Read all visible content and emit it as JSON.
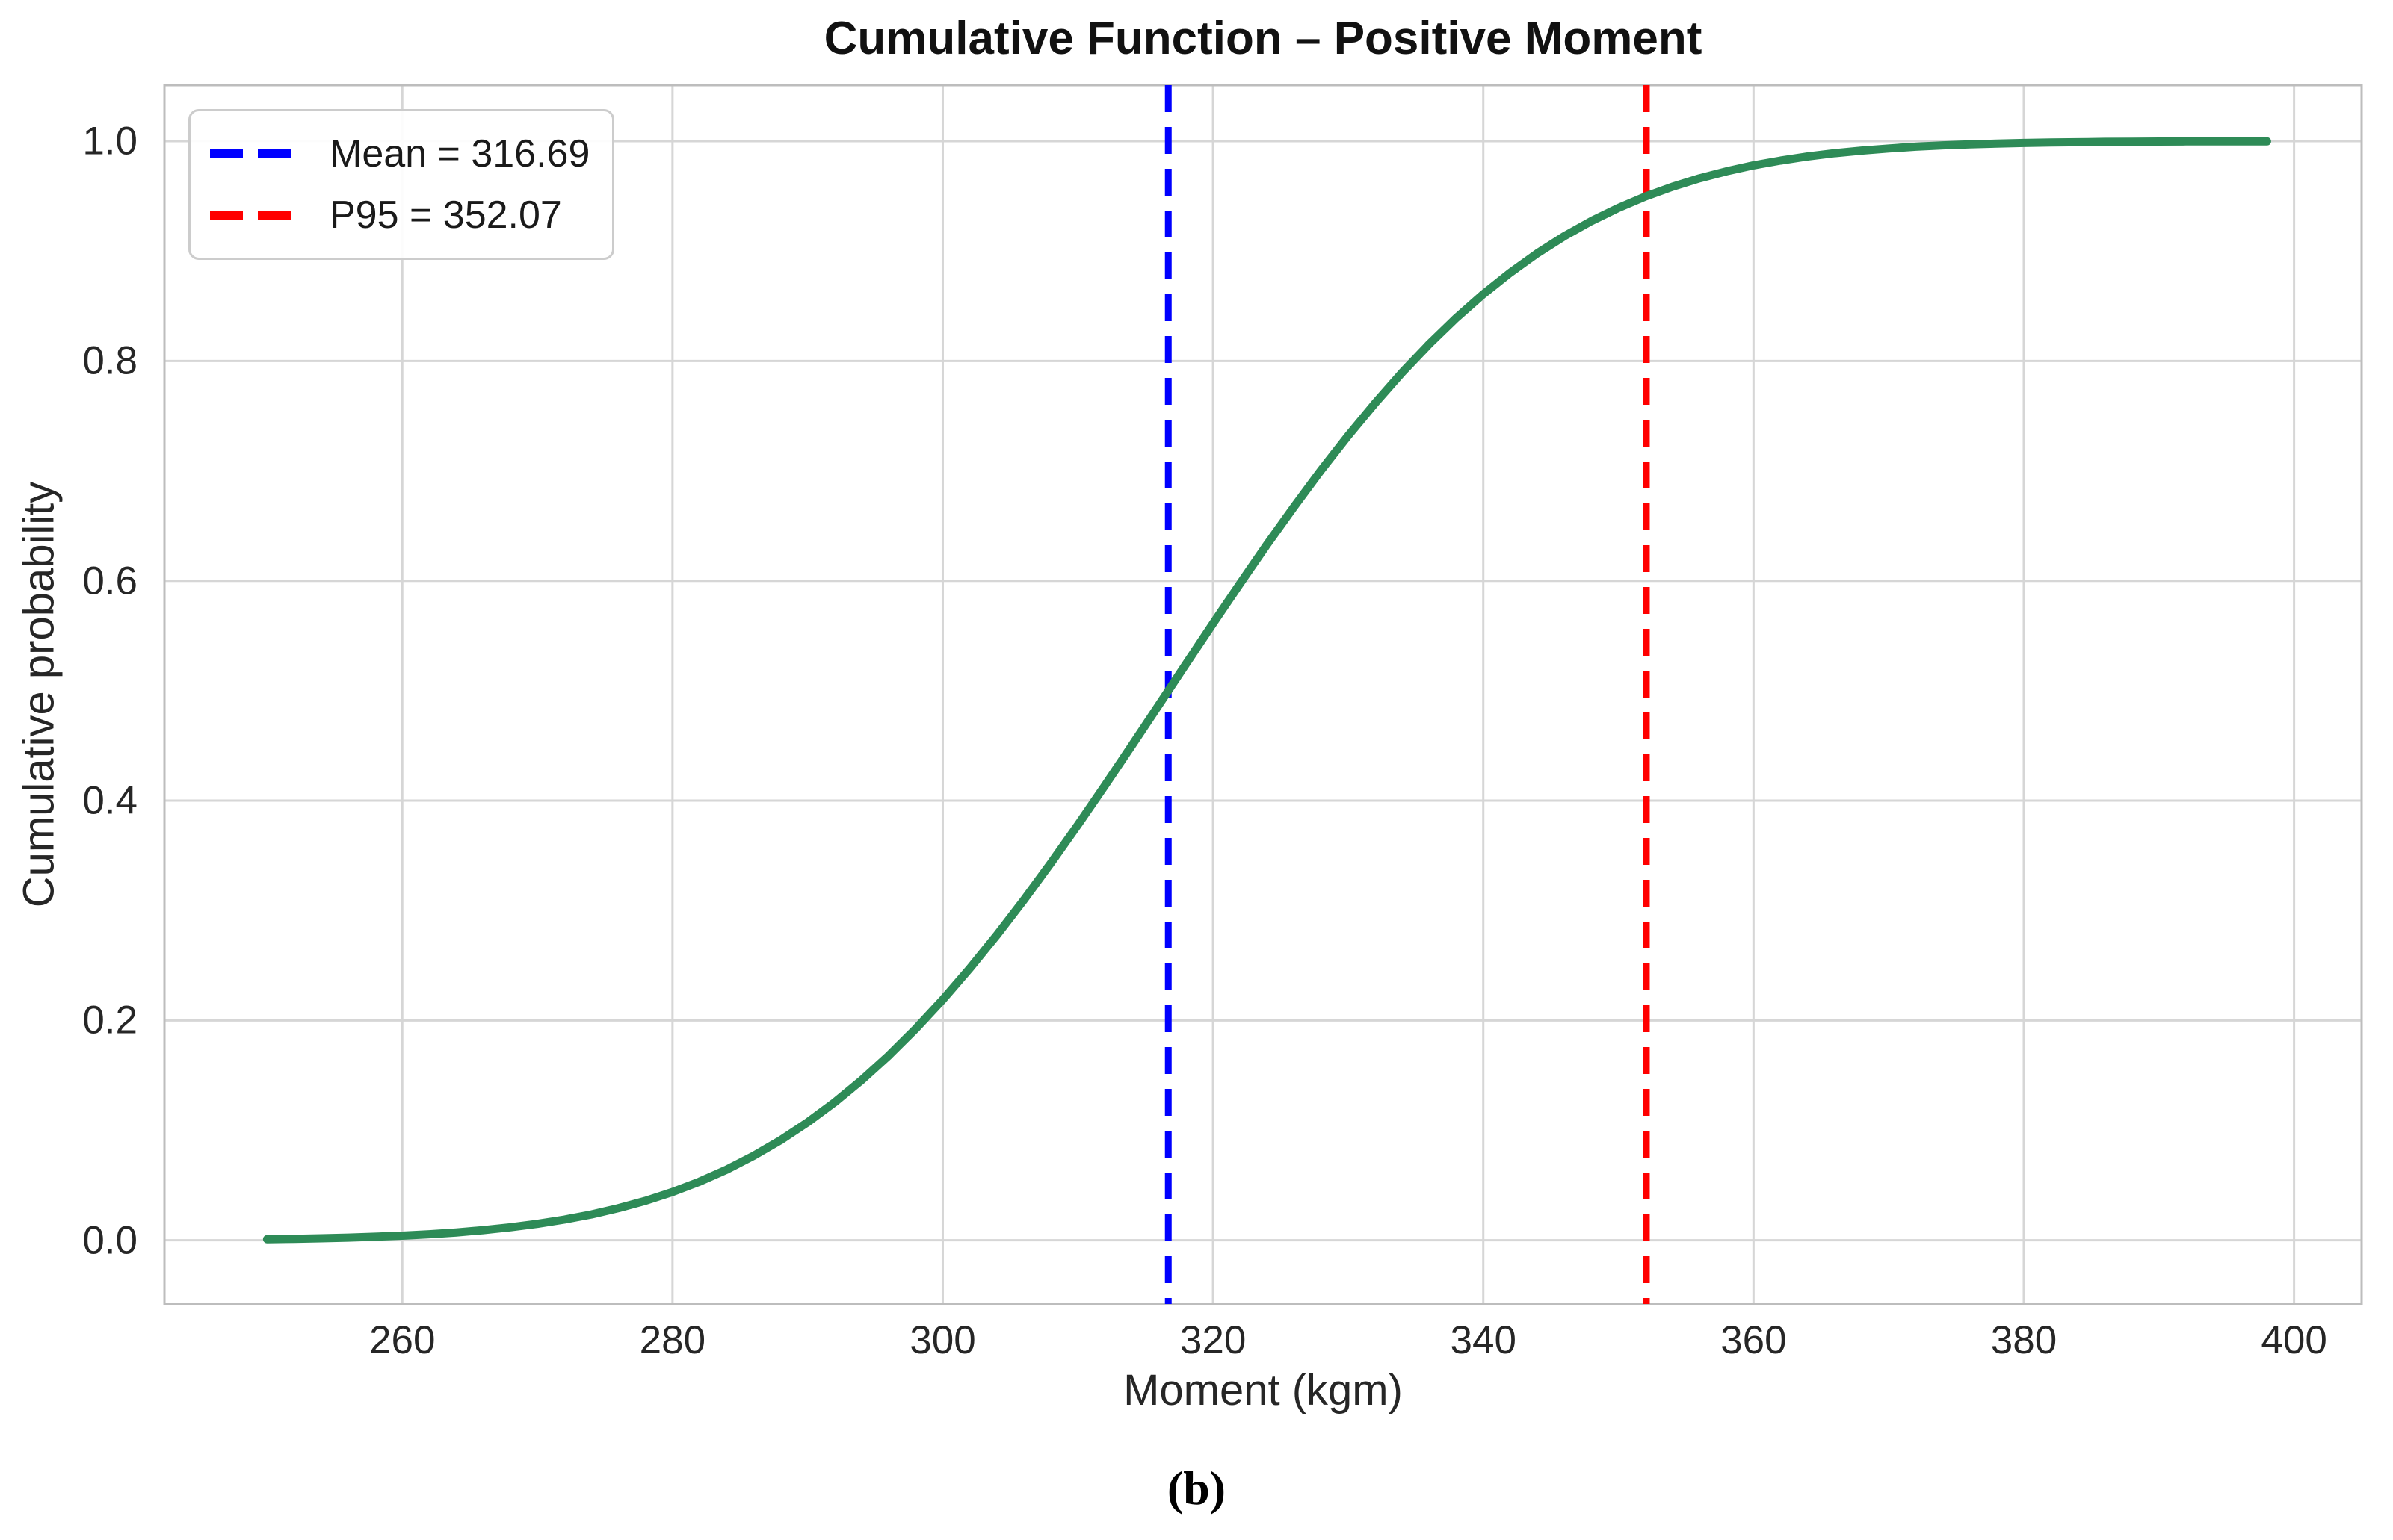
{
  "figure": {
    "title": "Cumulative Function – Positive Moment",
    "xlabel": "Moment (kgm)",
    "ylabel": "Cumulative probability",
    "caption": "(b)"
  },
  "legend": {
    "position": "upper-left",
    "items": [
      {
        "name": "mean-line",
        "label": "Mean = 316.69",
        "color": "#0000ff",
        "style": "dashed"
      },
      {
        "name": "p95-line",
        "label": "P95 = 352.07",
        "color": "#ff0000",
        "style": "dashed"
      }
    ]
  },
  "colors": {
    "curve": "#2e8b57",
    "mean_line": "#0000ff",
    "p95_line": "#ff0000",
    "grid": "#d6d6d6",
    "spine": "#bdbdbd",
    "text": "#262626"
  },
  "chart_data": {
    "type": "line",
    "title": "Cumulative Function – Positive Moment",
    "xlabel": "Moment (kgm)",
    "ylabel": "Cumulative probability",
    "xlim": [
      242.4,
      405.0
    ],
    "ylim": [
      -0.058,
      1.051
    ],
    "grid": true,
    "legend_position": "upper-left",
    "xticks": [
      {
        "v": 260,
        "label": "260"
      },
      {
        "v": 280,
        "label": "280"
      },
      {
        "v": 300,
        "label": "300"
      },
      {
        "v": 320,
        "label": "320"
      },
      {
        "v": 340,
        "label": "340"
      },
      {
        "v": 360,
        "label": "360"
      },
      {
        "v": 380,
        "label": "380"
      },
      {
        "v": 400,
        "label": "400"
      }
    ],
    "yticks": [
      {
        "v": 0.0,
        "label": "0.0"
      },
      {
        "v": 0.2,
        "label": "0.2"
      },
      {
        "v": 0.4,
        "label": "0.4"
      },
      {
        "v": 0.6,
        "label": "0.6"
      },
      {
        "v": 0.8,
        "label": "0.8"
      },
      {
        "v": 1.0,
        "label": "1.0"
      }
    ],
    "vlines": [
      {
        "name": "mean",
        "x": 316.69,
        "color": "#0000ff",
        "label": "Mean = 316.69"
      },
      {
        "name": "p95",
        "x": 352.07,
        "color": "#ff0000",
        "label": "P95 = 352.07"
      }
    ],
    "series": [
      {
        "name": "cumulative-probability-cdf",
        "color": "#2e8b57",
        "style": "solid",
        "points": [
          [
            250,
            0.001
          ],
          [
            252,
            0.0013
          ],
          [
            254,
            0.0018
          ],
          [
            256,
            0.0024
          ],
          [
            258,
            0.0032
          ],
          [
            260,
            0.0042
          ],
          [
            262,
            0.0055
          ],
          [
            264,
            0.0071
          ],
          [
            266,
            0.0092
          ],
          [
            268,
            0.0118
          ],
          [
            270,
            0.0149
          ],
          [
            272,
            0.0188
          ],
          [
            274,
            0.0235
          ],
          [
            276,
            0.0292
          ],
          [
            278,
            0.0359
          ],
          [
            280,
            0.0439
          ],
          [
            282,
            0.0533
          ],
          [
            284,
            0.0642
          ],
          [
            286,
            0.0768
          ],
          [
            288,
            0.0911
          ],
          [
            290,
            0.1073
          ],
          [
            292,
            0.1255
          ],
          [
            294,
            0.1457
          ],
          [
            296,
            0.168
          ],
          [
            298,
            0.1924
          ],
          [
            300,
            0.2189
          ],
          [
            302,
            0.2473
          ],
          [
            304,
            0.2776
          ],
          [
            306,
            0.3096
          ],
          [
            308,
            0.3431
          ],
          [
            310,
            0.3779
          ],
          [
            312,
            0.4137
          ],
          [
            314,
            0.4503
          ],
          [
            316,
            0.4872
          ],
          [
            318,
            0.5243
          ],
          [
            320,
            0.5612
          ],
          [
            322,
            0.5975
          ],
          [
            324,
            0.6331
          ],
          [
            326,
            0.6675
          ],
          [
            328,
            0.7006
          ],
          [
            330,
            0.732
          ],
          [
            332,
            0.7617
          ],
          [
            334,
            0.7896
          ],
          [
            336,
            0.8154
          ],
          [
            338,
            0.8392
          ],
          [
            340,
            0.8608
          ],
          [
            342,
            0.8804
          ],
          [
            344,
            0.898
          ],
          [
            346,
            0.9136
          ],
          [
            348,
            0.9273
          ],
          [
            350,
            0.9393
          ],
          [
            352,
            0.9497
          ],
          [
            354,
            0.9586
          ],
          [
            356,
            0.9662
          ],
          [
            358,
            0.9726
          ],
          [
            360,
            0.978
          ],
          [
            362,
            0.9824
          ],
          [
            364,
            0.9861
          ],
          [
            366,
            0.9891
          ],
          [
            368,
            0.9915
          ],
          [
            370,
            0.9934
          ],
          [
            372,
            0.995
          ],
          [
            374,
            0.9962
          ],
          [
            376,
            0.9971
          ],
          [
            378,
            0.9978
          ],
          [
            380,
            0.9984
          ],
          [
            382,
            0.9988
          ],
          [
            384,
            0.9991
          ],
          [
            386,
            0.9994
          ],
          [
            388,
            0.9995
          ],
          [
            390,
            0.9997
          ],
          [
            392,
            0.9998
          ],
          [
            394,
            0.9998
          ],
          [
            396,
            0.9999
          ],
          [
            398,
            0.9999
          ]
        ]
      }
    ]
  }
}
